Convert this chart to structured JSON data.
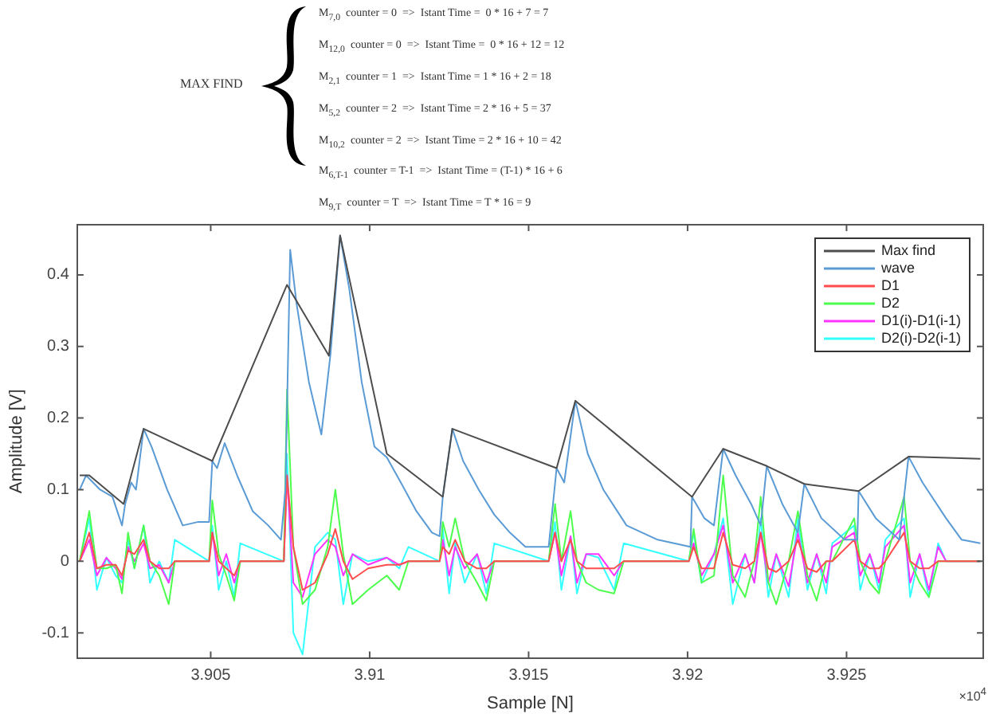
{
  "chart_data": {
    "type": "line",
    "xlabel": "Sample [N]",
    "ylabel": "Amplitude [V]",
    "annotations": [
      "MAX FIND",
      "M$_{7,0}$  counter = 0  =>  Istant Time =  0 * 16 + 7 = 7",
      "M$_{12,0}$  counter = 0  =>  Istant Time =  0 * 16 + 12 = 12",
      "M$_{2,1}$  counter = 1  =>  Istant Time = 1 * 16 + 2 = 18",
      "M$_{5,2}$  counter = 2  =>  Istant Time = 2 * 16 + 5 = 37",
      "M$_{10,2}$  counter = 2  =>  Istant Time = 2 * 16 + 10 = 42",
      "M$_{6,T-1}$  counter = T-1  =>  Istant Time = (T-1) * 16 + 6",
      "M$_{9,T}$  counter = T  =>  Istant Time = T * 16 = 9",
      "×10$^{4}$"
    ],
    "x": [
      3.90088,
      3.90118,
      3.90142,
      3.90172,
      3.90201,
      3.90221,
      3.9024,
      3.9026,
      3.90289,
      3.90309,
      3.90338,
      3.90368,
      3.90387,
      3.90495,
      3.90505,
      3.90525,
      3.90549,
      3.90574,
      3.90593,
      3.9073,
      3.9074,
      3.9076,
      3.90789,
      3.90828,
      3.90868,
      3.90892,
      3.90917,
      3.90946,
      3.90995,
      3.91054,
      3.91093,
      3.91122,
      3.9122,
      3.9123,
      3.9125,
      3.91269,
      3.91299,
      3.91338,
      3.91367,
      3.91392,
      3.91563,
      3.91583,
      3.91603,
      3.91632,
      3.91652,
      3.91681,
      3.9172,
      3.91769,
      3.91799,
      3.92004,
      3.92019,
      3.92044,
      3.92083,
      3.92112,
      3.92142,
      3.92181,
      3.9221,
      3.9223,
      3.92254,
      3.92279,
      3.92318,
      3.92347,
      3.92377,
      3.92406,
      3.92436,
      3.92455,
      3.92524,
      3.92543,
      3.92573,
      3.92602,
      3.92622,
      3.92681,
      3.927,
      3.9273,
      3.92759,
      3.92788,
      3.92813,
      3.92921
    ],
    "series": [
      {
        "name": "Max find",
        "color": "#4d4d4d",
        "x": [
          3.90088,
          3.90118,
          3.90226,
          3.90289,
          3.90505,
          3.9074,
          3.90872,
          3.90907,
          3.91054,
          3.9123,
          3.9126,
          3.91588,
          3.91647,
          3.92014,
          3.92112,
          3.92249,
          3.92367,
          3.92538,
          3.92695,
          3.92921
        ],
        "values": [
          0.12,
          0.12,
          0.08,
          0.185,
          0.14,
          0.386,
          0.287,
          0.455,
          0.15,
          0.09,
          0.185,
          0.13,
          0.224,
          0.09,
          0.157,
          0.133,
          0.108,
          0.098,
          0.146,
          0.143
        ]
      },
      {
        "name": "wave",
        "color": "#5a9bd5",
        "x": [
          3.90088,
          3.90108,
          3.90152,
          3.90191,
          3.90221,
          3.90231,
          3.9025,
          3.90265,
          3.90289,
          3.90314,
          3.90363,
          3.90412,
          3.90461,
          3.90495,
          3.90505,
          3.9052,
          3.90544,
          3.90583,
          3.90632,
          3.90681,
          3.90721,
          3.90735,
          3.9075,
          3.9077,
          3.90809,
          3.90848,
          3.90877,
          3.90907,
          3.90936,
          3.90975,
          3.91015,
          3.91054,
          3.91098,
          3.91147,
          3.91196,
          3.9122,
          3.9123,
          3.9126,
          3.91294,
          3.91343,
          3.91392,
          3.91441,
          3.9149,
          3.91563,
          3.91588,
          3.91612,
          3.91647,
          3.91686,
          3.91735,
          3.91808,
          3.91906,
          3.92009,
          3.92014,
          3.92053,
          3.92083,
          3.92112,
          3.92151,
          3.922,
          3.9223,
          3.92249,
          3.92298,
          3.92347,
          3.92367,
          3.92421,
          3.92494,
          3.92534,
          3.92538,
          3.92592,
          3.92666,
          3.92695,
          3.92739,
          3.92813,
          3.92862,
          3.92921
        ],
        "values": [
          0.1,
          0.12,
          0.1,
          0.09,
          0.05,
          0.08,
          0.11,
          0.1,
          0.185,
          0.16,
          0.1,
          0.05,
          0.055,
          0.055,
          0.14,
          0.13,
          0.165,
          0.12,
          0.07,
          0.05,
          0.03,
          0.1,
          0.435,
          0.36,
          0.25,
          0.177,
          0.29,
          0.455,
          0.38,
          0.25,
          0.16,
          0.145,
          0.11,
          0.07,
          0.04,
          0.035,
          0.09,
          0.185,
          0.14,
          0.1,
          0.065,
          0.04,
          0.02,
          0.02,
          0.13,
          0.11,
          0.224,
          0.15,
          0.1,
          0.05,
          0.03,
          0.02,
          0.09,
          0.06,
          0.05,
          0.157,
          0.12,
          0.08,
          0.05,
          0.133,
          0.08,
          0.04,
          0.108,
          0.06,
          0.03,
          0.03,
          0.098,
          0.06,
          0.03,
          0.146,
          0.11,
          0.06,
          0.03,
          0.025
        ]
      },
      {
        "name": "D1",
        "color": "#ff4d4d",
        "values": [
          0,
          0.04,
          -0.01,
          -0.005,
          -0.005,
          -0.02,
          0.015,
          0.01,
          0.03,
          0,
          -0.01,
          -0.01,
          0,
          0,
          0.04,
          0,
          -0.01,
          -0.02,
          0,
          0,
          0.12,
          0.02,
          -0.04,
          -0.03,
          0.01,
          0.045,
          0,
          -0.025,
          -0.01,
          -0.005,
          -0.005,
          0,
          0,
          0.02,
          0.01,
          0.03,
          0,
          -0.01,
          -0.01,
          0,
          0,
          0.04,
          0,
          0.03,
          0,
          -0.01,
          -0.01,
          -0.01,
          0,
          0,
          0.02,
          -0.01,
          -0.01,
          0.04,
          -0.005,
          -0.01,
          0,
          0.04,
          -0.01,
          -0.015,
          0,
          0.03,
          -0.01,
          -0.015,
          0,
          0,
          0.03,
          0,
          -0.01,
          -0.01,
          0,
          0.04,
          0,
          -0.01,
          -0.01,
          0,
          0,
          0
        ]
      },
      {
        "name": "D2",
        "color": "#4dff4d",
        "values": [
          0,
          0.07,
          -0.01,
          -0.01,
          -0.005,
          -0.045,
          0.04,
          -0.01,
          0.05,
          0,
          -0.02,
          -0.06,
          0,
          0,
          0.085,
          0.01,
          -0.02,
          -0.055,
          0,
          0,
          0.24,
          0.02,
          -0.06,
          -0.04,
          0.02,
          0.1,
          0.01,
          -0.06,
          -0.04,
          -0.02,
          -0.04,
          0,
          0,
          0.055,
          0.02,
          0.06,
          0,
          -0.03,
          -0.055,
          0,
          0,
          0.08,
          0,
          0.07,
          0,
          -0.03,
          -0.04,
          -0.045,
          0,
          0,
          0.045,
          -0.03,
          -0.02,
          0.12,
          -0.02,
          -0.05,
          0,
          0.09,
          -0.03,
          -0.06,
          0,
          0.07,
          -0.02,
          -0.055,
          0,
          0,
          0.06,
          0,
          -0.03,
          -0.045,
          0,
          0.09,
          0,
          -0.03,
          -0.05,
          0,
          0,
          0
        ]
      },
      {
        "name": "D1(i)-D1(i-1)",
        "color": "#ff33ff",
        "values": [
          0,
          0.03,
          -0.02,
          0.005,
          -0.01,
          -0.025,
          0.02,
          0,
          0.025,
          -0.01,
          -0.005,
          -0.03,
          0,
          0,
          0.04,
          -0.02,
          0.01,
          -0.03,
          0,
          0,
          0.12,
          -0.03,
          -0.05,
          0.01,
          0.03,
          0.02,
          -0.02,
          0.01,
          -0.005,
          0.005,
          -0.005,
          0,
          0,
          0.03,
          -0.02,
          0.02,
          -0.01,
          0.01,
          -0.03,
          0,
          0,
          0.04,
          -0.02,
          0.035,
          -0.03,
          0.01,
          0.01,
          -0.02,
          0,
          0,
          0.025,
          -0.02,
          0.01,
          0.05,
          -0.03,
          0.01,
          -0.03,
          0.04,
          -0.03,
          0.01,
          -0.035,
          0.04,
          -0.03,
          0.01,
          -0.03,
          0.02,
          0.04,
          -0.02,
          0.01,
          -0.03,
          0.02,
          0.05,
          -0.03,
          0.01,
          -0.04,
          0.02,
          0,
          0
        ]
      },
      {
        "name": "D2(i)-D2(i-1)",
        "color": "#33ffff",
        "values": [
          0,
          0.06,
          -0.04,
          0.005,
          -0.02,
          -0.03,
          0.03,
          -0.01,
          0.05,
          -0.03,
          0,
          -0.03,
          0.03,
          0,
          0.05,
          -0.04,
          0,
          -0.05,
          0.025,
          0,
          0.15,
          -0.1,
          -0.13,
          0.02,
          0.04,
          0.03,
          -0.06,
          0.01,
          0,
          0.005,
          -0.01,
          0.02,
          0,
          0.045,
          -0.045,
          0.025,
          -0.03,
          0.01,
          -0.045,
          0.025,
          0,
          0.055,
          -0.04,
          0.035,
          -0.045,
          0.01,
          0.005,
          -0.04,
          0.025,
          0,
          0.04,
          -0.03,
          0.01,
          0.06,
          -0.06,
          0.01,
          -0.03,
          0.06,
          -0.05,
          0.01,
          -0.05,
          0.06,
          -0.04,
          0.01,
          -0.045,
          0.025,
          0.05,
          -0.04,
          0.01,
          -0.04,
          0.03,
          0.06,
          -0.05,
          0.01,
          -0.05,
          0.025,
          0,
          0
        ]
      }
    ],
    "xlim": [
      3.9008,
      3.9293
    ],
    "xticks": [
      3.905,
      3.91,
      3.915,
      3.92,
      3.925
    ],
    "ylim": [
      -0.135,
      0.47
    ],
    "yticks": [
      -0.1,
      0,
      0.1,
      0.2,
      0.3,
      0.4
    ],
    "grid": false,
    "legend": "top right",
    "marker": "none",
    "line_style": "solid"
  }
}
